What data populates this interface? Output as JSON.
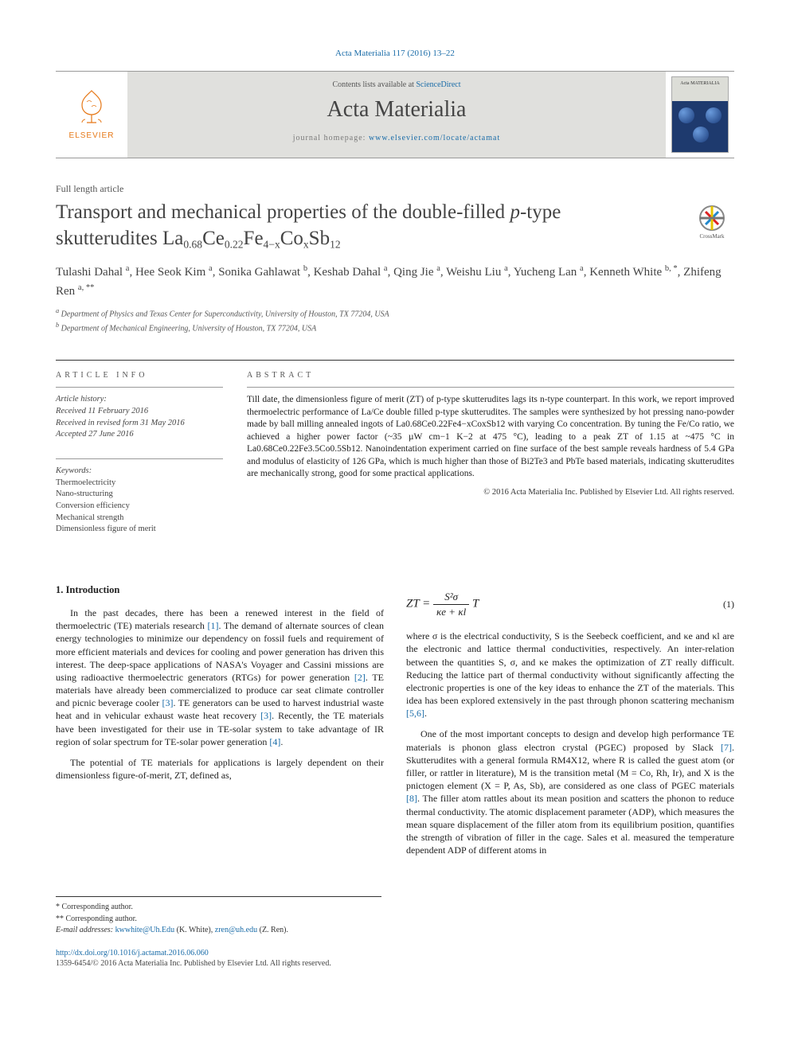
{
  "colors": {
    "link": "#1a6ca8",
    "elsevier_orange": "#e67817",
    "banner_bg": "#e0e0dd",
    "text": "#333333",
    "background": "#ffffff"
  },
  "top_citation": "Acta Materialia 117 (2016) 13–22",
  "banner": {
    "elsevier_label": "ELSEVIER",
    "contents_prefix": "Contents lists available at ",
    "contents_link": "ScienceDirect",
    "journal_name": "Acta Materialia",
    "homepage_prefix": "journal homepage: ",
    "homepage_url": "www.elsevier.com/locate/actamat",
    "cover_title": "Acta MATERIALIA"
  },
  "article_type": "Full length article",
  "title_parts": {
    "line1_pre": "Transport and mechanical properties of the double-filled ",
    "line1_ital": "p",
    "line1_post": "-type",
    "line2_pre": "skutterudites La",
    "formula_rest": "Ce",
    "sub_a": "0.68",
    "sub_b": "0.22",
    "mid1": "Fe",
    "sub_c": "4−x",
    "mid2": "Co",
    "sub_d": "x",
    "mid3": "Sb",
    "sub_e": "12"
  },
  "crossmark_label": "CrossMark",
  "authors_html": "Tulashi Dahal <sup>a</sup>, Hee Seok Kim <sup>a</sup>, Sonika Gahlawat <sup>b</sup>, Keshab Dahal <sup>a</sup>, Qing Jie <sup>a</sup>, Weishu Liu <sup>a</sup>, Yucheng Lan <sup>a</sup>, Kenneth White <sup>b, *</sup>, Zhifeng Ren <sup>a, **</sup>",
  "affiliations": {
    "a": "Department of Physics and Texas Center for Superconductivity, University of Houston, TX 77204, USA",
    "b": "Department of Mechanical Engineering, University of Houston, TX 77204, USA"
  },
  "info_label": "ARTICLE INFO",
  "abstract_label": "ABSTRACT",
  "history": {
    "header": "Article history:",
    "received": "Received 11 February 2016",
    "revised": "Received in revised form 31 May 2016",
    "accepted": "Accepted 27 June 2016"
  },
  "keywords": {
    "header": "Keywords:",
    "items": [
      "Thermoelectricity",
      "Nano-structuring",
      "Conversion efficiency",
      "Mechanical strength",
      "Dimensionless figure of merit"
    ]
  },
  "abstract": "Till date, the dimensionless figure of merit (ZT) of p-type skutterudites lags its n-type counterpart. In this work, we report improved thermoelectric performance of La/Ce double filled p-type skutterudites. The samples were synthesized by hot pressing nano-powder made by ball milling annealed ingots of La0.68Ce0.22Fe4−xCoxSb12 with varying Co concentration. By tuning the Fe/Co ratio, we achieved a higher power factor (~35 µW cm−1 K−2 at 475 °C), leading to a peak ZT of 1.15 at ~475 °C in La0.68Ce0.22Fe3.5Co0.5Sb12. Nanoindentation experiment carried on fine surface of the best sample reveals hardness of 5.4 GPa and modulus of elasticity of 126 GPa, which is much higher than those of Bi2Te3 and PbTe based materials, indicating skutterudites are mechanically strong, good for some practical applications.",
  "abstract_copyright": "© 2016 Acta Materialia Inc. Published by Elsevier Ltd. All rights reserved.",
  "intro_heading": "1. Introduction",
  "intro_p1": "In the past decades, there has been a renewed interest in the field of thermoelectric (TE) materials research [1]. The demand of alternate sources of clean energy technologies to minimize our dependency on fossil fuels and requirement of more efficient materials and devices for cooling and power generation has driven this interest. The deep-space applications of NASA's Voyager and Cassini missions are using radioactive thermoelectric generators (RTGs) for power generation [2]. TE materials have already been commercialized to produce car seat climate controller and picnic beverage cooler [3]. TE generators can be used to harvest industrial waste heat and in vehicular exhaust waste heat recovery [3]. Recently, the TE materials have been investigated for their use in TE-solar system to take advantage of IR region of solar spectrum for TE-solar power generation [4].",
  "intro_p2": "The potential of TE materials for applications is largely dependent on their dimensionless figure-of-merit, ZT, defined as,",
  "equation": {
    "lhs": "ZT",
    "eq": "=",
    "num": "S²σ",
    "den": "κe + κl",
    "tail": "T",
    "number": "(1)"
  },
  "col2_p1": "where σ is the electrical conductivity, S is the Seebeck coefficient, and κe and κl are the electronic and lattice thermal conductivities, respectively. An inter-relation between the quantities S, σ, and κe makes the optimization of ZT really difficult. Reducing the lattice part of thermal conductivity without significantly affecting the electronic properties is one of the key ideas to enhance the ZT of the materials. This idea has been explored extensively in the past through phonon scattering mechanism [5,6].",
  "col2_p2": "One of the most important concepts to design and develop high performance TE materials is phonon glass electron crystal (PGEC) proposed by Slack [7]. Skutterudites with a general formula RM4X12, where R is called the guest atom (or filler, or rattler in literature), M is the transition metal (M = Co, Rh, Ir), and X is the pnictogen element (X = P, As, Sb), are considered as one class of PGEC materials [8]. The filler atom rattles about its mean position and scatters the phonon to reduce thermal conductivity. The atomic displacement parameter (ADP), which measures the mean square displacement of the filler atom from its equilibrium position, quantifies the strength of vibration of filler in the cage. Sales et al. measured the temperature dependent ADP of different atoms in",
  "footnotes": {
    "star1": "* Corresponding author.",
    "star2": "** Corresponding author.",
    "email_label": "E-mail addresses:",
    "email1": "kwwhite@Uh.Edu",
    "email1_who": "(K. White),",
    "email2": "zren@uh.edu",
    "email2_who": "(Z. Ren)."
  },
  "doi": "http://dx.doi.org/10.1016/j.actamat.2016.06.060",
  "issn_line": "1359-6454/© 2016 Acta Materialia Inc. Published by Elsevier Ltd. All rights reserved."
}
